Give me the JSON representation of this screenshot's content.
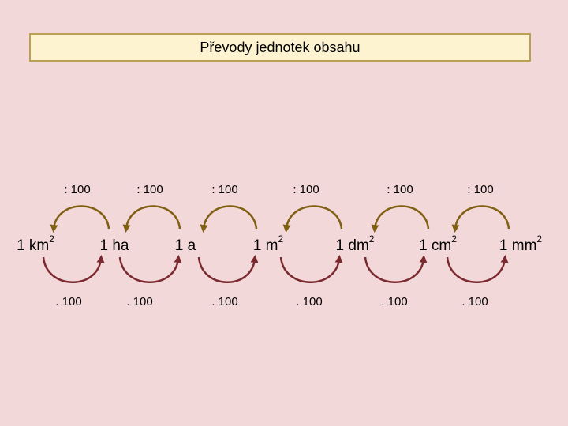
{
  "title": "Převody jednotek obsahu",
  "units": [
    {
      "label": "1 km",
      "exponent": "2"
    },
    {
      "label": "1 ha"
    },
    {
      "label": "1 a"
    },
    {
      "label": "1 m",
      "exponent": "2"
    },
    {
      "label": "1 dm",
      "exponent": "2"
    },
    {
      "label": "1 cm",
      "exponent": "2"
    },
    {
      "label": "1 mm",
      "exponent": "2"
    }
  ],
  "divide_labels": [
    ": 100",
    ": 100",
    ": 100",
    ": 100",
    ": 100",
    ": 100"
  ],
  "multiply_labels": [
    ". 100",
    ". 100",
    ". 100",
    ". 100",
    ". 100",
    ". 100"
  ]
}
